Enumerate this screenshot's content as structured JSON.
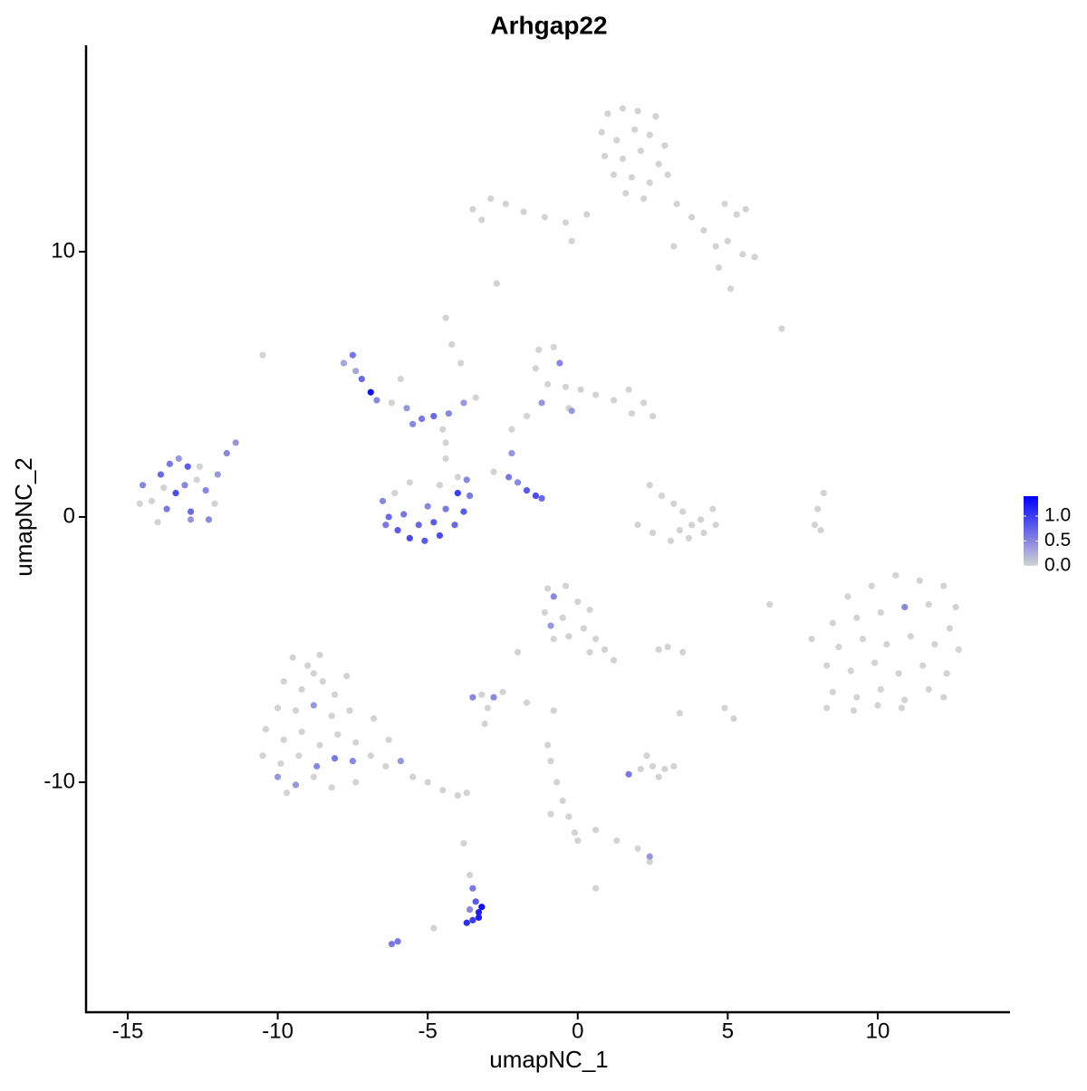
{
  "chart_data": {
    "type": "scatter",
    "title": "Arhgap22",
    "x_label": "umapNC_1",
    "y_label": "umapNC_2",
    "xlim": [
      -16.39,
      14.41
    ],
    "ylim": [
      -18.67,
      17.78
    ],
    "xticks": [
      -15,
      -10,
      -5,
      0,
      5,
      10
    ],
    "yticks": [
      -10,
      0,
      10
    ],
    "color_low": "#d3d3d3",
    "color_high": "#0000ff",
    "color_lim": [
      0,
      1.4
    ],
    "color_ticks": [
      {
        "value": 0,
        "label": "0.0"
      },
      {
        "value": 0.5,
        "label": "0.5"
      },
      {
        "value": 1,
        "label": "1.0"
      }
    ],
    "x": [
      1.0,
      1.5,
      2.0,
      2.6,
      0.8,
      1.3,
      1.9,
      2.4,
      2.9,
      0.9,
      1.5,
      2.1,
      2.7,
      1.2,
      1.8,
      2.4,
      3.0,
      1.6,
      2.2,
      3.3,
      3.8,
      4.2,
      4.6,
      5.0,
      5.5,
      5.9,
      5.3,
      4.9,
      5.6,
      4.7,
      5.1,
      -3.5,
      -2.9,
      -2.4,
      -1.8,
      -1.1,
      -0.4,
      0.3,
      -3.2,
      -0.2,
      3.2,
      -2.7,
      6.8,
      -10.5,
      -14.5,
      -14.2,
      -13.9,
      -13.6,
      -13.3,
      -13.0,
      -12.7,
      -12.4,
      -12.1,
      -12.3,
      -13.4,
      -13.7,
      -14.0,
      -12.9,
      -13.1,
      -14.6,
      -12.0,
      -11.7,
      -11.4,
      -12.9,
      -13.8,
      -12.6,
      -7.8,
      -7.5,
      -7.2,
      -6.9,
      -6.7,
      -6.2,
      -5.7,
      -5.2,
      -4.8,
      -4.3,
      -3.8,
      -3.4,
      -5.9,
      -7.4,
      -4.5,
      -5.5,
      -4.4,
      -4.2,
      -3.9,
      -4.4,
      -4.4,
      -6.5,
      -6.3,
      -6.0,
      -5.6,
      -5.1,
      -4.6,
      -4.1,
      -3.8,
      -3.6,
      -3.7,
      -4.0,
      -5.8,
      -5.3,
      -4.8,
      -4.4,
      -4.0,
      -6.1,
      -5.0,
      -6.4,
      -4.6,
      -5.6,
      -1.3,
      -0.8,
      -1.4,
      -0.6,
      -1.0,
      -0.4,
      -1.2,
      0.1,
      0.6,
      1.2,
      1.7,
      2.2,
      2.5,
      1.8,
      -0.3,
      -1.7,
      -2.2,
      -0.2,
      -2.2,
      -2.3,
      -2.0,
      -1.7,
      -1.4,
      -1.2,
      -2.8,
      2.4,
      2.8,
      3.2,
      3.5,
      3.8,
      4.1,
      4.5,
      4.2,
      3.7,
      3.1,
      2.5,
      2.0,
      3.4,
      4.6,
      8.2,
      8.0,
      7.9,
      8.1,
      9.0,
      9.8,
      10.6,
      11.4,
      12.2,
      12.6,
      8.5,
      9.3,
      10.1,
      10.9,
      11.7,
      12.4,
      7.8,
      8.7,
      9.5,
      10.3,
      11.1,
      11.9,
      12.7,
      8.3,
      9.1,
      9.9,
      10.7,
      11.5,
      12.3,
      8.5,
      9.3,
      10.1,
      10.9,
      11.7,
      12.2,
      8.3,
      9.2,
      10.0,
      10.8,
      -1.0,
      -0.4,
      -0.8,
      0.0,
      0.4,
      -1.1,
      -0.5,
      -0.9,
      0.2,
      0.6,
      -0.3,
      0.9,
      1.2,
      -0.8,
      0.4,
      2.7,
      3.0,
      6.4,
      -9.5,
      -9.0,
      -8.6,
      -9.8,
      -9.2,
      -8.5,
      -8.1,
      -10.0,
      -9.4,
      -8.8,
      -8.2,
      -7.6,
      -10.4,
      -9.8,
      -9.2,
      -8.6,
      -8.0,
      -7.4,
      -10.5,
      -9.9,
      -9.3,
      -8.7,
      -8.1,
      -7.5,
      -10.0,
      -9.4,
      -8.8,
      -8.2,
      -7.4,
      -6.9,
      -6.4,
      -5.9,
      -5.5,
      -5.0,
      -4.5,
      -4.0,
      -3.7,
      -6.8,
      -7.7,
      -8.8,
      -9.7,
      -6.3,
      -3.2,
      -2.8,
      -2.5,
      -3.5,
      -3.0,
      -3.1,
      -1.7,
      -2.0,
      1.7,
      2.1,
      2.5,
      2.9,
      3.2,
      2.3,
      2.7,
      3.4,
      4.9,
      5.2,
      3.5,
      -1.0,
      -0.9,
      -0.7,
      -0.5,
      -0.3,
      -0.1,
      0.0,
      0.6,
      1.3,
      2.0,
      2.4,
      2.4,
      -0.9,
      -0.8,
      0.6,
      -3.6,
      -3.5,
      -3.4,
      -3.3,
      -3.2,
      -3.5,
      -3.7,
      -3.3,
      -3.6,
      -3.8,
      -4.8,
      -6.0,
      -6.2
    ],
    "y": [
      15.2,
      15.4,
      15.3,
      15.1,
      14.5,
      14.2,
      14.6,
      14.4,
      14.0,
      13.6,
      13.5,
      13.8,
      13.3,
      12.9,
      12.8,
      12.6,
      12.9,
      12.2,
      12.0,
      11.8,
      11.3,
      10.8,
      10.2,
      10.4,
      9.9,
      9.8,
      11.4,
      11.8,
      11.6,
      9.4,
      8.6,
      11.6,
      12.0,
      11.8,
      11.5,
      11.3,
      11.1,
      11.4,
      11.2,
      10.4,
      10.2,
      8.8,
      7.1,
      6.1,
      1.2,
      0.6,
      1.6,
      2.0,
      2.2,
      1.9,
      1.4,
      1.0,
      0.5,
      -0.1,
      0.9,
      0.3,
      -0.2,
      0.2,
      1.2,
      0.5,
      1.6,
      2.4,
      2.8,
      -0.1,
      1.1,
      1.9,
      5.8,
      6.1,
      5.2,
      4.7,
      4.4,
      4.3,
      4.1,
      3.7,
      3.8,
      3.9,
      4.3,
      4.5,
      5.2,
      5.5,
      3.3,
      3.5,
      7.5,
      6.5,
      5.8,
      2.8,
      2.2,
      0.6,
      0.0,
      -0.5,
      -0.8,
      -0.9,
      -0.7,
      -0.3,
      0.2,
      0.8,
      1.4,
      1.5,
      0.1,
      -0.3,
      -0.2,
      0.3,
      0.9,
      0.9,
      0.4,
      -0.3,
      1.2,
      1.3,
      6.3,
      6.4,
      5.6,
      5.8,
      5.0,
      4.9,
      4.3,
      4.8,
      4.6,
      4.4,
      4.8,
      4.3,
      3.8,
      3.9,
      4.1,
      3.8,
      3.3,
      4.0,
      2.4,
      1.5,
      1.3,
      1.0,
      0.8,
      0.7,
      1.7,
      1.2,
      0.8,
      0.5,
      0.2,
      -0.3,
      -0.1,
      0.3,
      -0.6,
      -0.8,
      -0.9,
      -0.6,
      -0.3,
      -0.5,
      -0.3,
      0.9,
      0.3,
      -0.3,
      -0.5,
      -3.0,
      -2.6,
      -2.2,
      -2.4,
      -2.6,
      -3.4,
      -4.0,
      -3.8,
      -3.6,
      -3.4,
      -3.3,
      -4.2,
      -4.6,
      -4.9,
      -4.6,
      -4.8,
      -4.5,
      -4.8,
      -5.0,
      -5.6,
      -5.8,
      -5.5,
      -5.9,
      -5.6,
      -5.9,
      -6.6,
      -6.8,
      -6.5,
      -6.9,
      -6.5,
      -6.8,
      -7.2,
      -7.3,
      -7.1,
      -7.2,
      -2.7,
      -2.6,
      -3.0,
      -3.2,
      -3.5,
      -3.6,
      -3.8,
      -4.1,
      -4.2,
      -4.6,
      -4.5,
      -5.0,
      -5.4,
      -4.6,
      -5.1,
      -5.0,
      -4.9,
      -3.3,
      -5.3,
      -5.6,
      -5.2,
      -6.2,
      -6.5,
      -6.2,
      -6.7,
      -7.2,
      -7.3,
      -7.1,
      -7.5,
      -7.3,
      -8.0,
      -8.4,
      -8.1,
      -8.6,
      -8.2,
      -8.5,
      -9.0,
      -9.3,
      -9.0,
      -9.4,
      -9.1,
      -9.2,
      -9.8,
      -10.1,
      -9.8,
      -10.2,
      -10.0,
      -9.0,
      -9.4,
      -9.2,
      -9.8,
      -10.0,
      -10.3,
      -10.5,
      -10.4,
      -7.6,
      -6.0,
      -5.9,
      -10.4,
      -8.4,
      -6.7,
      -6.8,
      -6.6,
      -6.8,
      -7.2,
      -7.8,
      -7.0,
      -5.1,
      -9.7,
      -9.5,
      -9.4,
      -9.5,
      -9.4,
      -9.0,
      -9.8,
      -7.4,
      -7.2,
      -7.6,
      -5.1,
      -8.6,
      -9.2,
      -10.0,
      -10.7,
      -11.3,
      -11.9,
      -12.2,
      -11.8,
      -12.2,
      -12.5,
      -12.8,
      -13.0,
      -11.2,
      -7.3,
      -14.0,
      -13.5,
      -14.0,
      -14.5,
      -14.9,
      -14.7,
      -15.2,
      -15.3,
      -15.1,
      -14.8,
      -12.3,
      -15.5,
      -16.0,
      -16.1
    ],
    "values": [
      0,
      0,
      0,
      0,
      0,
      0,
      0,
      0,
      0,
      0,
      0,
      0,
      0,
      0,
      0,
      0,
      0,
      0,
      0,
      0,
      0,
      0,
      0,
      0,
      0,
      0,
      0,
      0,
      0,
      0,
      0,
      0,
      0,
      0,
      0,
      0,
      0,
      0,
      0,
      0,
      0,
      0,
      0,
      0,
      0.5,
      0,
      0.7,
      0.6,
      0.4,
      0.8,
      0,
      0.5,
      0,
      0.5,
      0.9,
      0.6,
      0,
      0.7,
      0.5,
      0,
      0.4,
      0.5,
      0.4,
      0.4,
      0,
      0,
      0.3,
      0.6,
      0.7,
      1.3,
      0.5,
      0,
      0.4,
      0.6,
      0.7,
      0.5,
      0.4,
      0,
      0,
      0.3,
      0,
      0.5,
      0,
      0,
      0,
      0,
      0,
      0.5,
      0.7,
      0.8,
      0.9,
      0.8,
      0.9,
      0.7,
      0.8,
      0.6,
      0.5,
      0,
      0.6,
      0.7,
      0.8,
      0.6,
      1.0,
      0,
      0.5,
      0.6,
      0,
      0,
      0,
      0,
      0,
      0.5,
      0,
      0,
      0.4,
      0,
      0,
      0,
      0,
      0,
      0,
      0,
      0,
      0,
      0,
      0.4,
      0.4,
      0.6,
      0.5,
      0.8,
      0.9,
      0.7,
      0,
      0,
      0,
      0,
      0,
      0,
      0,
      0,
      0,
      0,
      0,
      0,
      0,
      0,
      0,
      0,
      0,
      0,
      0,
      0,
      0,
      0,
      0,
      0,
      0,
      0,
      0,
      0,
      0.5,
      0,
      0,
      0,
      0,
      0,
      0,
      0,
      0,
      0,
      0,
      0,
      0,
      0,
      0,
      0,
      0,
      0,
      0,
      0,
      0,
      0,
      0,
      0,
      0,
      0,
      0,
      0,
      0.5,
      0,
      0,
      0,
      0,
      0.4,
      0,
      0,
      0,
      0,
      0,
      0,
      0,
      0,
      0,
      0,
      0,
      0,
      0,
      0,
      0,
      0,
      0,
      0,
      0,
      0.4,
      0,
      0,
      0,
      0,
      0,
      0,
      0,
      0,
      0,
      0,
      0,
      0.5,
      0.6,
      0.5,
      0.4,
      0.4,
      0,
      0,
      0,
      0,
      0,
      0.4,
      0,
      0,
      0,
      0,
      0,
      0,
      0,
      0,
      0,
      0,
      0,
      0.5,
      0,
      0.5,
      0,
      0,
      0,
      0,
      0.6,
      0,
      0,
      0,
      0,
      0,
      0,
      0,
      0,
      0,
      0,
      0,
      0,
      0,
      0,
      0,
      0,
      0,
      0,
      0,
      0,
      0.4,
      0,
      0,
      0,
      0,
      0,
      0.6,
      0.8,
      1.2,
      1.3,
      1.0,
      1.1,
      1.2,
      0.5,
      0,
      0,
      0.6,
      0.6
    ]
  }
}
